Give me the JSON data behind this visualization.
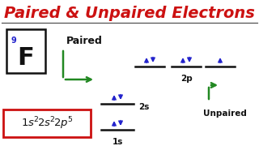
{
  "title": "Paired & Unpaired Electrons",
  "title_color": "#cc1111",
  "bg_color": "#ffffff",
  "element_symbol": "F",
  "atomic_number": "9",
  "paired_label": "Paired",
  "unpaired_label": "Unpaired",
  "blue": "#2222cc",
  "green": "#228822",
  "black": "#111111",
  "red": "#cc1111",
  "fig_w": 3.2,
  "fig_h": 1.8,
  "dpi": 100
}
